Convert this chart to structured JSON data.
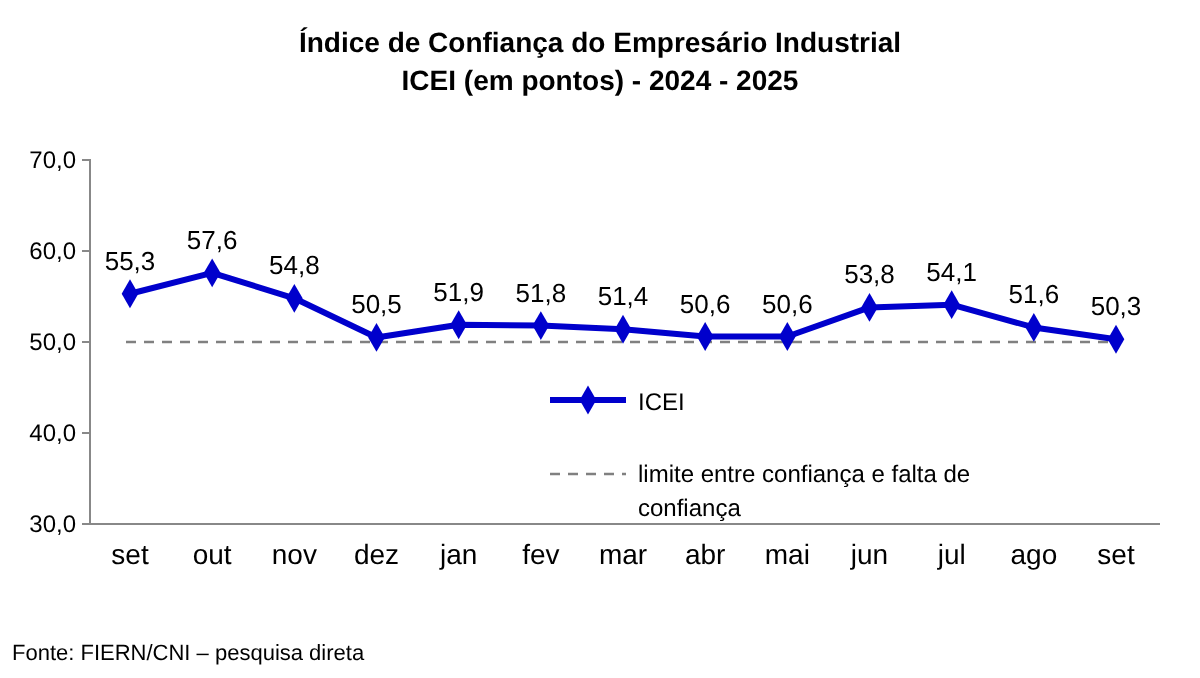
{
  "chart_data": {
    "type": "line",
    "title": "Índice de Confiança do Empresário Industrial\nICEI (em pontos) - 2024 - 2025",
    "categories": [
      "set",
      "out",
      "nov",
      "dez",
      "jan",
      "fev",
      "mar",
      "abr",
      "mai",
      "jun",
      "jul",
      "ago",
      "set"
    ],
    "series": [
      {
        "name": "ICEI",
        "color": "#0000cc",
        "values": [
          55.3,
          57.6,
          54.8,
          50.5,
          51.9,
          51.8,
          51.4,
          50.6,
          50.6,
          53.8,
          54.1,
          51.6,
          50.3
        ]
      }
    ],
    "ylim": [
      30,
      70
    ],
    "yticks": [
      {
        "value": 30,
        "label": "30,0"
      },
      {
        "value": 40,
        "label": "40,0"
      },
      {
        "value": 50,
        "label": "50,0"
      },
      {
        "value": 60,
        "label": "60,0"
      },
      {
        "value": 70,
        "label": "70,0"
      }
    ],
    "value_labels": [
      "55,3",
      "57,6",
      "54,8",
      "50,5",
      "51,9",
      "51,8",
      "51,4",
      "50,6",
      "50,6",
      "53,8",
      "54,1",
      "51,6",
      "50,3"
    ],
    "ref_lines": [
      {
        "axis": "y",
        "value": 50,
        "label": "limite entre confiança e falta de confiança",
        "color": "#808080",
        "line_style": "dashed"
      }
    ],
    "marker": "diamond",
    "line_style": "solid",
    "legend": "center",
    "grid": false,
    "annotations": [
      "Fonte: FIERN/CNI – pesquisa direta"
    ]
  }
}
